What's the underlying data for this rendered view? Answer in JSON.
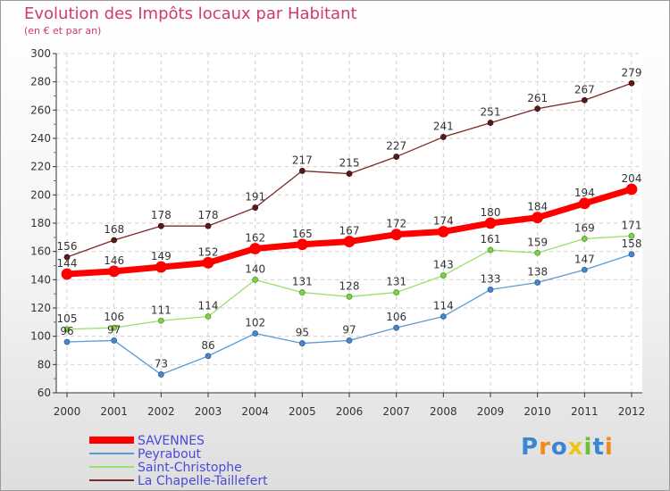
{
  "chart_data": {
    "type": "line",
    "title": "Evolution des Impôts locaux par Habitant",
    "subtitle": "(en € et par an)",
    "xlabel": "",
    "ylabel": "",
    "x": [
      "2000",
      "2001",
      "2002",
      "2003",
      "2004",
      "2005",
      "2006",
      "2007",
      "2008",
      "2009",
      "2010",
      "2011",
      "2012"
    ],
    "ylim": [
      60,
      300
    ],
    "yticks": [
      60,
      80,
      100,
      120,
      140,
      160,
      180,
      200,
      220,
      240,
      260,
      280,
      300
    ],
    "grid": true,
    "legend_position": "bottom-left",
    "series": [
      {
        "name": "SAVENNES",
        "color": "#ff0000",
        "values": [
          144,
          146,
          149,
          152,
          162,
          165,
          167,
          172,
          174,
          180,
          184,
          194,
          204
        ]
      },
      {
        "name": "Peyrabout",
        "color": "#5b9bd5",
        "values": [
          96,
          97,
          73,
          86,
          102,
          95,
          97,
          106,
          114,
          133,
          138,
          147,
          158
        ]
      },
      {
        "name": "Saint-Christophe",
        "color": "#99e06a",
        "values": [
          105,
          106,
          111,
          114,
          140,
          131,
          128,
          131,
          143,
          161,
          159,
          169,
          171
        ]
      },
      {
        "name": "La Chapelle-Taillefert",
        "color": "#7a2a2a",
        "values": [
          156,
          168,
          178,
          178,
          191,
          217,
          215,
          227,
          241,
          251,
          261,
          267,
          279
        ]
      }
    ]
  },
  "logo": {
    "letters": [
      "P",
      "r",
      "o",
      "x",
      "i",
      "t",
      "i"
    ],
    "colors": [
      "#3a86d4",
      "#f08a1c",
      "#3a86d4",
      "#f0c419",
      "#6bbf3a",
      "#3a86d4",
      "#f08a1c"
    ]
  }
}
